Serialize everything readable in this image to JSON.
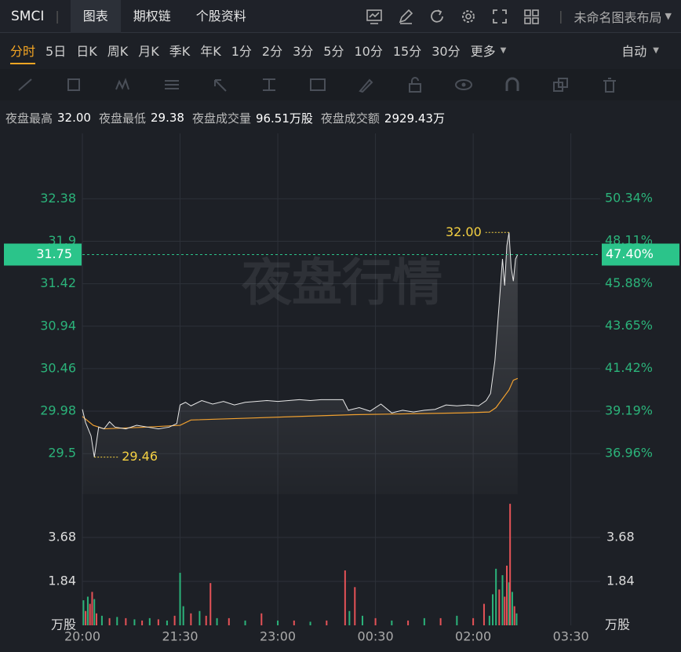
{
  "header": {
    "symbol": "SMCI",
    "tabs": [
      "图表",
      "期权链",
      "个股资料"
    ],
    "layout_name": "未命名图表布局"
  },
  "periods": {
    "items": [
      "分时",
      "5日",
      "日K",
      "周K",
      "月K",
      "季K",
      "年K",
      "1分",
      "2分",
      "3分",
      "5分",
      "10分",
      "15分",
      "30分",
      "更多"
    ],
    "mode": "自动"
  },
  "info": [
    {
      "label": "夜盘最高",
      "value": "32.00"
    },
    {
      "label": "夜盘最低",
      "value": "29.38"
    },
    {
      "label": "夜盘成交量",
      "value": "96.51万股"
    },
    {
      "label": "夜盘成交额",
      "value": "2929.43万"
    }
  ],
  "chart_data": {
    "type": "line",
    "watermark": "夜盘行情",
    "xlim": [
      0,
      477
    ],
    "xticks": [
      {
        "value": 0,
        "label": "20:00"
      },
      {
        "value": 90,
        "label": "21:30"
      },
      {
        "value": 180,
        "label": "23:00"
      },
      {
        "value": 270,
        "label": "00:30"
      },
      {
        "value": 360,
        "label": "02:00"
      },
      {
        "value": 450,
        "label": "03:30"
      }
    ],
    "ylim": [
      29.04,
      33.12
    ],
    "yticks": [
      29.5,
      29.98,
      30.46,
      30.94,
      31.42,
      31.9,
      32.38
    ],
    "y2lim": [
      34.82,
      53.76
    ],
    "y2ticks": [
      {
        "value": 36.96,
        "label": "36.96%"
      },
      {
        "value": 39.19,
        "label": "39.19%"
      },
      {
        "value": 41.42,
        "label": "41.42%"
      },
      {
        "value": 43.65,
        "label": "43.65%"
      },
      {
        "value": 45.88,
        "label": "45.88%"
      },
      {
        "value": 48.11,
        "label": "48.11%"
      },
      {
        "value": 50.34,
        "label": "50.34%"
      }
    ],
    "grid": true,
    "price": {
      "color": "#e8e8e8",
      "x": [
        0,
        3,
        8,
        11,
        15,
        20,
        25,
        30,
        40,
        50,
        60,
        70,
        80,
        87,
        90,
        95,
        100,
        110,
        120,
        130,
        140,
        150,
        160,
        170,
        180,
        190,
        200,
        210,
        220,
        240,
        245,
        255,
        265,
        275,
        285,
        295,
        305,
        315,
        325,
        335,
        345,
        355,
        365,
        372,
        376,
        380,
        384,
        387,
        389,
        391,
        393,
        395,
        397,
        399,
        401
      ],
      "values": [
        30.0,
        29.85,
        29.7,
        29.46,
        29.8,
        29.78,
        29.86,
        29.8,
        29.78,
        29.82,
        29.8,
        29.78,
        29.8,
        29.84,
        30.05,
        30.08,
        30.04,
        30.1,
        30.06,
        30.09,
        30.05,
        30.08,
        30.09,
        30.1,
        30.09,
        30.1,
        30.11,
        30.1,
        30.11,
        30.11,
        29.99,
        30.02,
        29.98,
        30.06,
        29.96,
        29.99,
        29.97,
        29.99,
        30.0,
        30.05,
        30.04,
        30.05,
        30.04,
        30.1,
        30.18,
        30.55,
        31.2,
        31.7,
        31.4,
        31.85,
        32.0,
        31.6,
        31.45,
        31.7,
        31.75
      ]
    },
    "average": {
      "color": "#f0a030",
      "x": [
        0,
        10,
        20,
        60,
        90,
        100,
        150,
        200,
        250,
        300,
        350,
        375,
        381,
        387,
        393,
        397,
        401
      ],
      "values": [
        29.92,
        29.82,
        29.78,
        29.8,
        29.82,
        29.88,
        29.9,
        29.92,
        29.94,
        29.95,
        29.96,
        29.97,
        30.02,
        30.12,
        30.22,
        30.33,
        30.35
      ]
    },
    "annotations": [
      {
        "x": 393,
        "value": 32.0,
        "label": "32.00"
      },
      {
        "x": 11,
        "value": 29.46,
        "label": "29.46"
      }
    ],
    "last": {
      "value": 31.75,
      "label": "31.75",
      "pct": {
        "value": 47.4,
        "label": "47.40%"
      }
    },
    "volume": {
      "unit": "万股",
      "vlim": [
        0,
        5.16
      ],
      "vticks": [
        1.84,
        3.68
      ],
      "x": [
        1,
        3,
        5,
        7,
        9,
        11,
        13,
        18,
        25,
        32,
        40,
        48,
        55,
        62,
        70,
        78,
        85,
        90,
        93,
        100,
        108,
        114,
        118,
        124,
        135,
        150,
        165,
        180,
        195,
        210,
        225,
        242,
        246,
        251,
        258,
        270,
        285,
        300,
        315,
        330,
        345,
        360,
        370,
        375,
        378,
        381,
        384,
        387,
        389,
        391,
        393,
        394,
        396,
        398,
        400
      ],
      "values": [
        1.05,
        0.6,
        1.2,
        0.9,
        1.4,
        1.1,
        0.5,
        0.4,
        0.3,
        0.35,
        0.3,
        0.25,
        0.2,
        0.3,
        0.25,
        0.2,
        0.4,
        2.2,
        0.8,
        0.5,
        0.6,
        0.4,
        1.77,
        0.3,
        0.3,
        0.2,
        0.5,
        0.2,
        0.2,
        0.15,
        0.2,
        2.3,
        0.6,
        1.6,
        0.4,
        0.3,
        0.2,
        0.2,
        0.3,
        0.3,
        0.4,
        0.3,
        0.9,
        0.4,
        1.3,
        2.37,
        1.5,
        2.1,
        1.2,
        2.5,
        1.8,
        5.09,
        1.4,
        0.8,
        0.5
      ],
      "colors": [
        "#2bb37a",
        "#e55257",
        "#2bb37a",
        "#e55257",
        "#e55257",
        "#2bb37a",
        "#e55257",
        "#2bb37a",
        "#e55257",
        "#2bb37a",
        "#e55257",
        "#2bb37a",
        "#e55257",
        "#2bb37a",
        "#e55257",
        "#2bb37a",
        "#e55257",
        "#2bb37a",
        "#2bb37a",
        "#e55257",
        "#2bb37a",
        "#e55257",
        "#e55257",
        "#2bb37a",
        "#e55257",
        "#2bb37a",
        "#e55257",
        "#2bb37a",
        "#e55257",
        "#2bb37a",
        "#e55257",
        "#e55257",
        "#2bb37a",
        "#e55257",
        "#2bb37a",
        "#e55257",
        "#2bb37a",
        "#e55257",
        "#2bb37a",
        "#e55257",
        "#2bb37a",
        "#e55257",
        "#e55257",
        "#2bb37a",
        "#2bb37a",
        "#2bb37a",
        "#e55257",
        "#2bb37a",
        "#e55257",
        "#e55257",
        "#2bb37a",
        "#e55257",
        "#2bb37a",
        "#e55257",
        "#2bb37a"
      ]
    }
  }
}
